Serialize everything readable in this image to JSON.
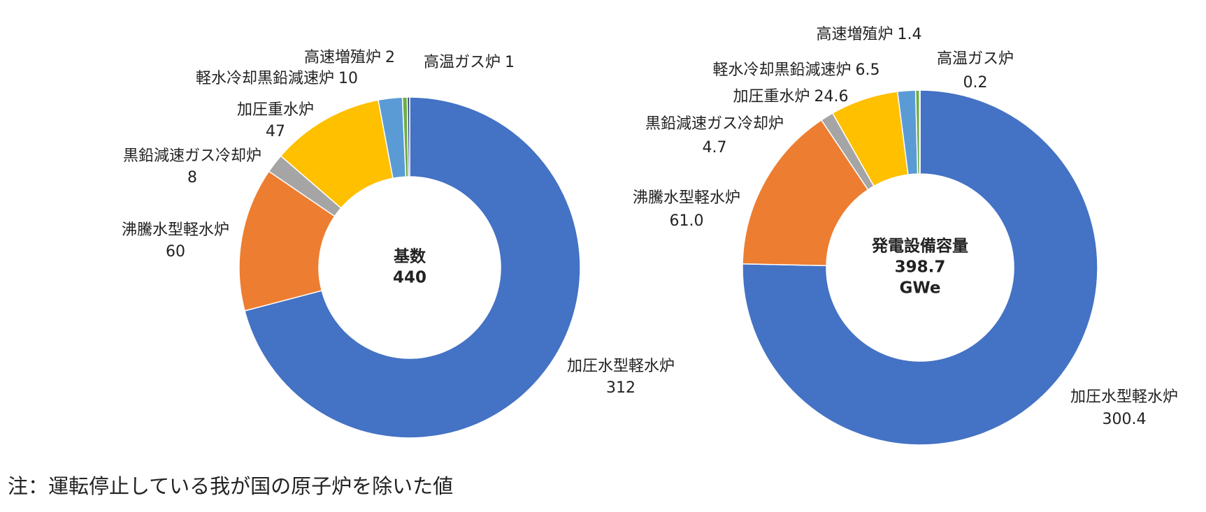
{
  "chart_data": [
    {
      "type": "donut",
      "center_text": [
        "基数",
        "440"
      ],
      "categories": [
        "加圧水型軽水炉",
        "沸騰水型軽水炉",
        "黒鉛減速ガス冷却炉",
        "加圧重水炉",
        "軽水冷却黒鉛減速炉",
        "高速増殖炉",
        "高温ガス炉"
      ],
      "values": [
        312,
        60,
        8,
        47,
        10,
        2,
        1
      ],
      "colors": [
        "#4472c4",
        "#ed7d31",
        "#a5a5a5",
        "#ffc000",
        "#5b9bd5",
        "#70ad47",
        "#264478"
      ]
    },
    {
      "type": "donut",
      "center_text": [
        "発電設備容量",
        "398.7",
        "GWe"
      ],
      "categories": [
        "加圧水型軽水炉",
        "沸騰水型軽水炉",
        "黒鉛減速ガス冷却炉",
        "加圧重水炉",
        "軽水冷却黒鉛減速炉",
        "高速増殖炉",
        "高温ガス炉"
      ],
      "values": [
        300.4,
        61,
        4.7,
        24.6,
        6.5,
        1.4,
        0.2
      ],
      "value_labels": [
        "300.4",
        "61.0",
        "4.7",
        "24.6",
        "6.5",
        "1.4",
        "0.2"
      ],
      "colors": [
        "#4472c4",
        "#ed7d31",
        "#a5a5a5",
        "#ffc000",
        "#5b9bd5",
        "#70ad47",
        "#264478"
      ]
    }
  ],
  "note": "注：運転停止している我が国の原子炉を除いた値"
}
